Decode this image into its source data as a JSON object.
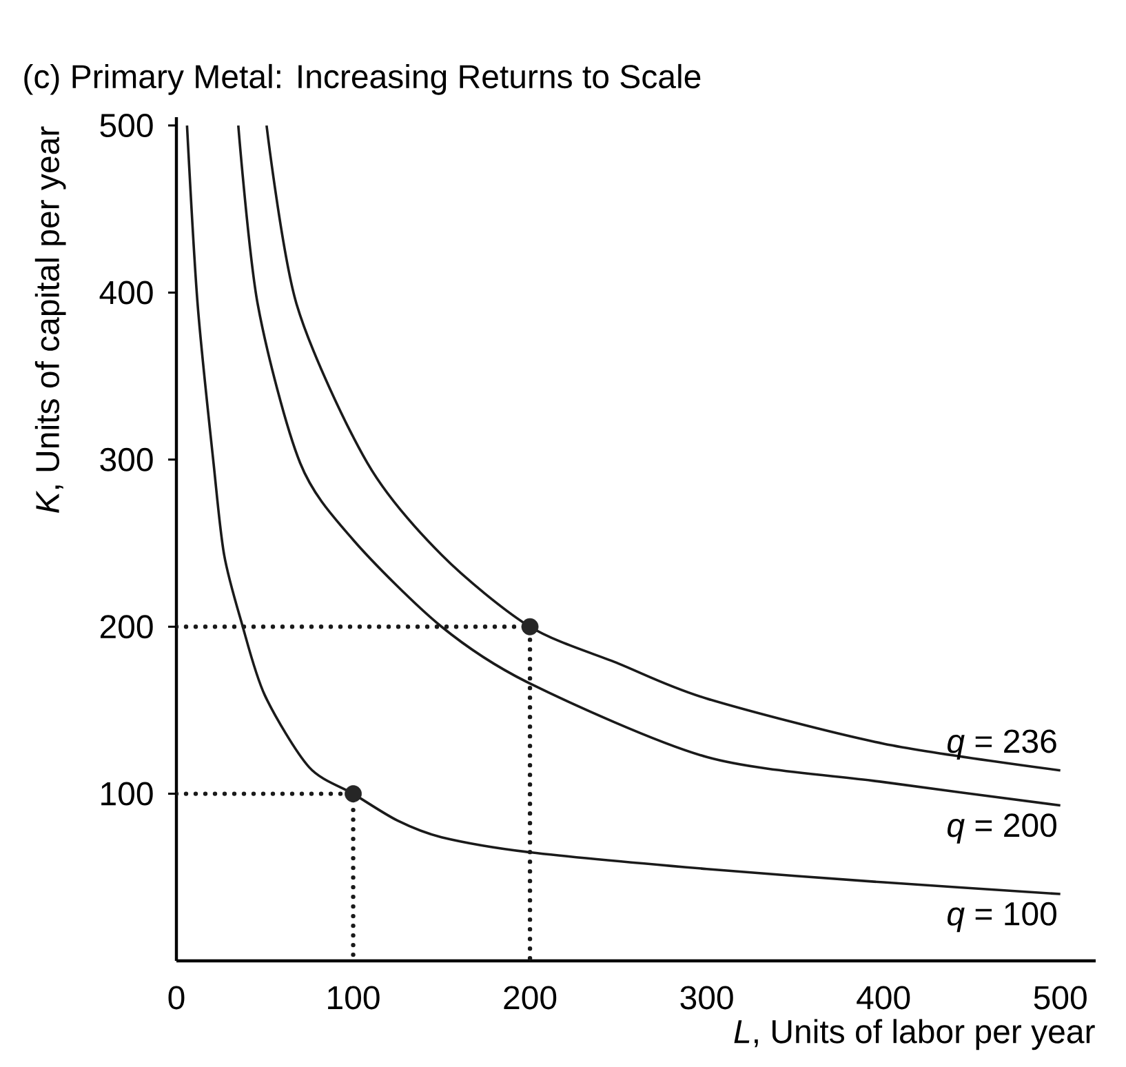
{
  "chart_data": {
    "type": "line",
    "title": "(c) Primary Metal: Increasing Returns to Scale",
    "xlabel": "*L*, Units of labor per year",
    "ylabel": "*K*, Units of capital per year",
    "xlim": [
      0,
      520
    ],
    "ylim": [
      0,
      505
    ],
    "xticks": [
      0,
      100,
      200,
      300,
      400,
      500
    ],
    "yticks": [
      100,
      200,
      300,
      400,
      500
    ],
    "grid": false,
    "marker": "none",
    "series": [
      {
        "name": "*q* = 236",
        "color": "#1a1a1a",
        "x": [
          51,
          68,
          108,
          150,
          200,
          250,
          300,
          400,
          500
        ],
        "values": [
          500,
          393,
          298,
          243,
          200,
          178,
          157,
          130,
          114
        ]
      },
      {
        "name": "*q* = 200",
        "color": "#1a1a1a",
        "x": [
          35,
          46,
          70,
          100,
          150,
          200,
          300,
          400,
          500
        ],
        "values": [
          500,
          393,
          298,
          252,
          200,
          166,
          122,
          107,
          93
        ]
      },
      {
        "name": "*q* = 100",
        "color": "#1a1a1a",
        "x": [
          6,
          12,
          21,
          27,
          37,
          50,
          75,
          100,
          125,
          150,
          200,
          300,
          400,
          500
        ],
        "values": [
          500,
          393,
          298,
          243,
          202,
          159,
          116,
          100,
          84,
          74,
          65,
          55,
          47,
          40
        ]
      },
      {
        "type": "line",
        "line_style": "dotted",
        "color": "#1a1a1a",
        "x": [
          0,
          100,
          100
        ],
        "values": [
          100,
          100,
          0
        ]
      },
      {
        "type": "line",
        "line_style": "dotted",
        "color": "#1a1a1a",
        "x": [
          0,
          200,
          200
        ],
        "values": [
          200,
          200,
          0
        ]
      },
      {
        "type": "scatter",
        "marker": "circle",
        "color": "#262626",
        "x": [
          100,
          200
        ],
        "values": [
          100,
          200
        ]
      }
    ]
  }
}
